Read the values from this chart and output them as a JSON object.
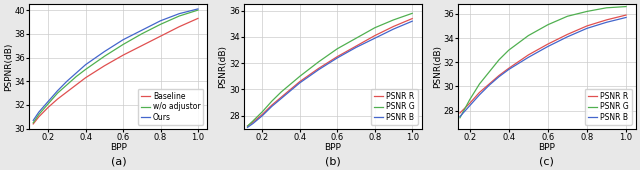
{
  "subplot_a": {
    "label": "(a)",
    "xlabel": "BPP",
    "ylabel": "PSPNR(dB)",
    "xlim": [
      0.1,
      1.05
    ],
    "ylim": [
      30.0,
      40.5
    ],
    "yticks": [
      30,
      32,
      34,
      36,
      38,
      40
    ],
    "xticks": [
      0.2,
      0.4,
      0.6,
      0.8,
      1.0
    ],
    "lines": [
      {
        "label": "Baseline",
        "color": "#e05050",
        "style": "-"
      },
      {
        "label": "w/o adjustor",
        "color": "#50b050",
        "style": "-"
      },
      {
        "label": "Ours",
        "color": "#4466cc",
        "style": "-"
      }
    ],
    "bpp": [
      0.12,
      0.15,
      0.2,
      0.25,
      0.3,
      0.35,
      0.4,
      0.5,
      0.6,
      0.7,
      0.8,
      0.9,
      1.0
    ],
    "baseline_psnr": [
      30.4,
      31.0,
      31.8,
      32.5,
      33.1,
      33.7,
      34.3,
      35.3,
      36.2,
      37.0,
      37.8,
      38.6,
      39.3
    ],
    "woadj_psnr": [
      30.5,
      31.2,
      32.1,
      33.0,
      33.7,
      34.4,
      35.0,
      36.1,
      37.1,
      38.0,
      38.8,
      39.5,
      40.0
    ],
    "ours_psnr": [
      30.7,
      31.4,
      32.3,
      33.2,
      34.0,
      34.7,
      35.4,
      36.5,
      37.5,
      38.3,
      39.1,
      39.7,
      40.1
    ]
  },
  "subplot_b": {
    "label": "(b)",
    "xlabel": "BPP",
    "ylabel": "PSNR(dB)",
    "xlim": [
      0.1,
      1.05
    ],
    "ylim": [
      27.0,
      36.5
    ],
    "yticks": [
      28,
      30,
      32,
      34,
      36
    ],
    "xticks": [
      0.2,
      0.4,
      0.6,
      0.8,
      1.0
    ],
    "lines": [
      {
        "label": "PSNR R",
        "color": "#e05050",
        "style": "-"
      },
      {
        "label": "PSNR G",
        "color": "#50b050",
        "style": "-"
      },
      {
        "label": "PSNR B",
        "color": "#4466cc",
        "style": "-"
      }
    ],
    "bpp": [
      0.12,
      0.15,
      0.2,
      0.25,
      0.3,
      0.35,
      0.4,
      0.5,
      0.6,
      0.7,
      0.8,
      0.9,
      1.0
    ],
    "R_psnr": [
      27.2,
      27.5,
      28.1,
      28.8,
      29.4,
      30.0,
      30.6,
      31.6,
      32.5,
      33.3,
      34.1,
      34.8,
      35.4
    ],
    "G_psnr": [
      27.2,
      27.6,
      28.3,
      29.1,
      29.8,
      30.4,
      31.0,
      32.1,
      33.1,
      33.9,
      34.7,
      35.3,
      35.8
    ],
    "B_psnr": [
      27.1,
      27.4,
      28.0,
      28.7,
      29.3,
      29.9,
      30.5,
      31.5,
      32.4,
      33.2,
      33.9,
      34.6,
      35.2
    ]
  },
  "subplot_c": {
    "label": "(c)",
    "xlabel": "BPP",
    "ylabel": "PSNR(dB)",
    "xlim": [
      0.14,
      1.05
    ],
    "ylim": [
      26.5,
      36.8
    ],
    "yticks": [
      28,
      30,
      32,
      34,
      36
    ],
    "xticks": [
      0.2,
      0.4,
      0.6,
      0.8,
      1.0
    ],
    "lines": [
      {
        "label": "PSNR R",
        "color": "#e05050",
        "style": "-"
      },
      {
        "label": "PSNR G",
        "color": "#50b050",
        "style": "-"
      },
      {
        "label": "PSNR B",
        "color": "#4466cc",
        "style": "-"
      }
    ],
    "bpp": [
      0.15,
      0.2,
      0.25,
      0.3,
      0.35,
      0.4,
      0.5,
      0.6,
      0.7,
      0.8,
      0.9,
      1.0
    ],
    "R_psnr": [
      27.8,
      28.6,
      29.5,
      30.2,
      30.9,
      31.5,
      32.6,
      33.5,
      34.3,
      35.0,
      35.5,
      35.9
    ],
    "G_psnr": [
      27.4,
      28.9,
      30.2,
      31.2,
      32.2,
      33.0,
      34.2,
      35.1,
      35.8,
      36.2,
      36.5,
      36.6
    ],
    "B_psnr": [
      27.5,
      28.4,
      29.3,
      30.1,
      30.8,
      31.4,
      32.4,
      33.3,
      34.1,
      34.8,
      35.3,
      35.7
    ]
  },
  "fig_background": "#e8e8e8",
  "axes_background": "#ffffff",
  "grid_color": "#cccccc",
  "fontsize_label": 6.5,
  "fontsize_tick": 6,
  "fontsize_legend": 5.5,
  "fontsize_sublabel": 8,
  "linewidth": 0.9
}
